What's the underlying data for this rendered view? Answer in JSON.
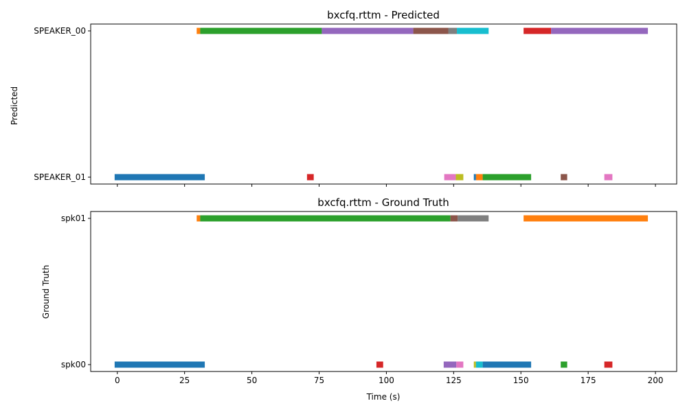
{
  "chart_data": [
    {
      "type": "timeline",
      "title": "bxcfq.rttm - Predicted",
      "ylabel": "Predicted",
      "xlabel": "",
      "categories": [
        "SPEAKER_01",
        "SPEAKER_00"
      ],
      "xlim": [
        -9.9,
        207.9
      ],
      "xticks": [
        0,
        25,
        50,
        75,
        100,
        125,
        150,
        175,
        200
      ],
      "show_xtick_labels": false,
      "grid": false,
      "segments": [
        {
          "speaker": "SPEAKER_00",
          "start": 29.5,
          "end": 30.8,
          "color": "#ff7f0e"
        },
        {
          "speaker": "SPEAKER_00",
          "start": 30.8,
          "end": 76.0,
          "color": "#2ca02c"
        },
        {
          "speaker": "SPEAKER_00",
          "start": 76.0,
          "end": 110.0,
          "color": "#9467bd"
        },
        {
          "speaker": "SPEAKER_00",
          "start": 110.0,
          "end": 123.0,
          "color": "#8c564b"
        },
        {
          "speaker": "SPEAKER_00",
          "start": 123.0,
          "end": 126.2,
          "color": "#7f7f7f"
        },
        {
          "speaker": "SPEAKER_00",
          "start": 126.2,
          "end": 138.0,
          "color": "#17becf"
        },
        {
          "speaker": "SPEAKER_00",
          "start": 151.0,
          "end": 161.2,
          "color": "#d62728"
        },
        {
          "speaker": "SPEAKER_00",
          "start": 161.2,
          "end": 197.2,
          "color": "#9467bd"
        },
        {
          "speaker": "SPEAKER_01",
          "start": -1.0,
          "end": 32.5,
          "color": "#1f77b4"
        },
        {
          "speaker": "SPEAKER_01",
          "start": 70.5,
          "end": 73.0,
          "color": "#d62728"
        },
        {
          "speaker": "SPEAKER_01",
          "start": 121.5,
          "end": 125.8,
          "color": "#e377c2"
        },
        {
          "speaker": "SPEAKER_01",
          "start": 125.8,
          "end": 128.6,
          "color": "#bcbd22"
        },
        {
          "speaker": "SPEAKER_01",
          "start": 132.5,
          "end": 133.3,
          "color": "#1f77b4"
        },
        {
          "speaker": "SPEAKER_01",
          "start": 133.3,
          "end": 135.8,
          "color": "#ff7f0e"
        },
        {
          "speaker": "SPEAKER_01",
          "start": 135.8,
          "end": 153.8,
          "color": "#2ca02c"
        },
        {
          "speaker": "SPEAKER_01",
          "start": 164.8,
          "end": 167.2,
          "color": "#8c564b"
        },
        {
          "speaker": "SPEAKER_01",
          "start": 181.0,
          "end": 184.0,
          "color": "#e377c2"
        }
      ]
    },
    {
      "type": "timeline",
      "title": "bxcfq.rttm - Ground Truth",
      "ylabel": "Ground Truth",
      "xlabel": "Time (s)",
      "categories": [
        "spk00",
        "spk01"
      ],
      "xlim": [
        -9.9,
        207.9
      ],
      "xticks": [
        0,
        25,
        50,
        75,
        100,
        125,
        150,
        175,
        200
      ],
      "show_xtick_labels": true,
      "grid": false,
      "segments": [
        {
          "speaker": "spk01",
          "start": 29.5,
          "end": 30.8,
          "color": "#ff7f0e"
        },
        {
          "speaker": "spk01",
          "start": 30.8,
          "end": 123.8,
          "color": "#2ca02c"
        },
        {
          "speaker": "spk01",
          "start": 123.8,
          "end": 126.5,
          "color": "#8c564b"
        },
        {
          "speaker": "spk01",
          "start": 126.5,
          "end": 138.0,
          "color": "#7f7f7f"
        },
        {
          "speaker": "spk01",
          "start": 151.0,
          "end": 197.2,
          "color": "#ff7f0e"
        },
        {
          "speaker": "spk00",
          "start": -1.0,
          "end": 32.5,
          "color": "#1f77b4"
        },
        {
          "speaker": "spk00",
          "start": 96.3,
          "end": 98.8,
          "color": "#d62728"
        },
        {
          "speaker": "spk00",
          "start": 121.3,
          "end": 126.0,
          "color": "#9467bd"
        },
        {
          "speaker": "spk00",
          "start": 126.0,
          "end": 128.6,
          "color": "#e377c2"
        },
        {
          "speaker": "spk00",
          "start": 132.5,
          "end": 133.3,
          "color": "#bcbd22"
        },
        {
          "speaker": "spk00",
          "start": 133.3,
          "end": 135.8,
          "color": "#17becf"
        },
        {
          "speaker": "spk00",
          "start": 135.8,
          "end": 153.8,
          "color": "#1f77b4"
        },
        {
          "speaker": "spk00",
          "start": 164.8,
          "end": 167.2,
          "color": "#2ca02c"
        },
        {
          "speaker": "spk00",
          "start": 181.0,
          "end": 184.0,
          "color": "#d62728"
        }
      ]
    }
  ]
}
